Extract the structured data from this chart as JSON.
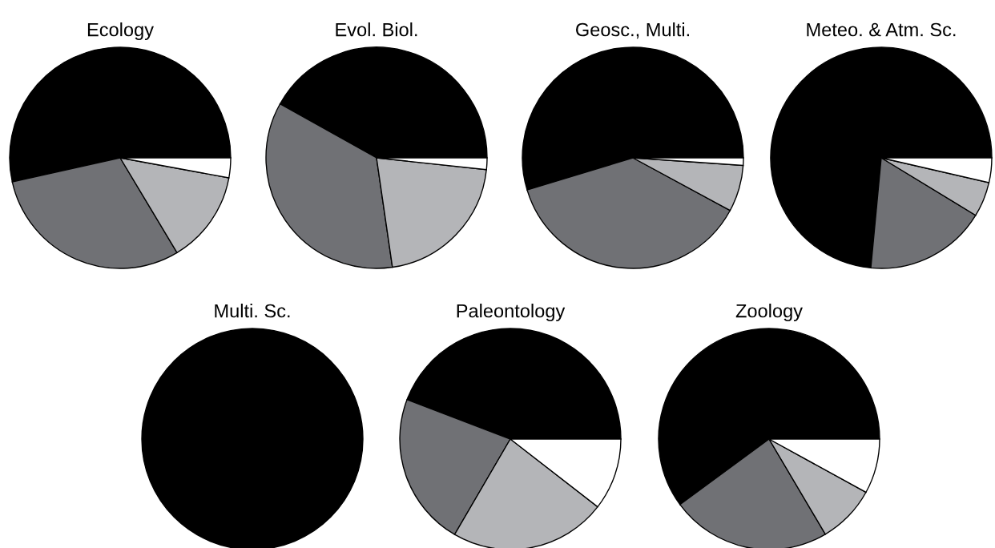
{
  "chart_data": [
    {
      "type": "pie",
      "title": "Ecology",
      "categories": [
        null,
        null,
        null,
        null
      ],
      "values": [
        53.5,
        30.1,
        13.5,
        2.9
      ],
      "colors": [
        "#000000",
        "#707175",
        "#b4b5b8",
        "#ffffff"
      ]
    },
    {
      "type": "pie",
      "title": "Evol. Biol.",
      "categories": [
        null,
        null,
        null,
        null
      ],
      "values": [
        41.9,
        35.4,
        21.0,
        1.7
      ],
      "colors": [
        "#000000",
        "#707175",
        "#b4b5b8",
        "#ffffff"
      ]
    },
    {
      "type": "pie",
      "title": "Geosc., Multi.",
      "categories": [
        null,
        null,
        null,
        null
      ],
      "values": [
        54.7,
        37.4,
        6.8,
        1.1
      ],
      "colors": [
        "#000000",
        "#707175",
        "#b4b5b8",
        "#ffffff"
      ]
    },
    {
      "type": "pie",
      "title": "Meteo. & Atm. Sc.",
      "categories": [
        null,
        null,
        null,
        null
      ],
      "values": [
        73.5,
        17.8,
        5.1,
        3.6
      ],
      "colors": [
        "#000000",
        "#707175",
        "#b4b5b8",
        "#ffffff"
      ]
    },
    {
      "type": "pie",
      "title": "Multi. Sc.",
      "categories": [
        null
      ],
      "values": [
        100
      ],
      "colors": [
        "#000000"
      ]
    },
    {
      "type": "pie",
      "title": "Paleontology",
      "categories": [
        null,
        null,
        null,
        null
      ],
      "values": [
        44.2,
        22.4,
        22.9,
        10.5
      ],
      "colors": [
        "#000000",
        "#707175",
        "#b4b5b8",
        "#ffffff"
      ]
    },
    {
      "type": "pie",
      "title": "Zoology",
      "categories": [
        null,
        null,
        null,
        null
      ],
      "values": [
        60.1,
        23.4,
        8.5,
        8.0
      ],
      "colors": [
        "#000000",
        "#707175",
        "#b4b5b8",
        "#ffffff"
      ]
    }
  ]
}
